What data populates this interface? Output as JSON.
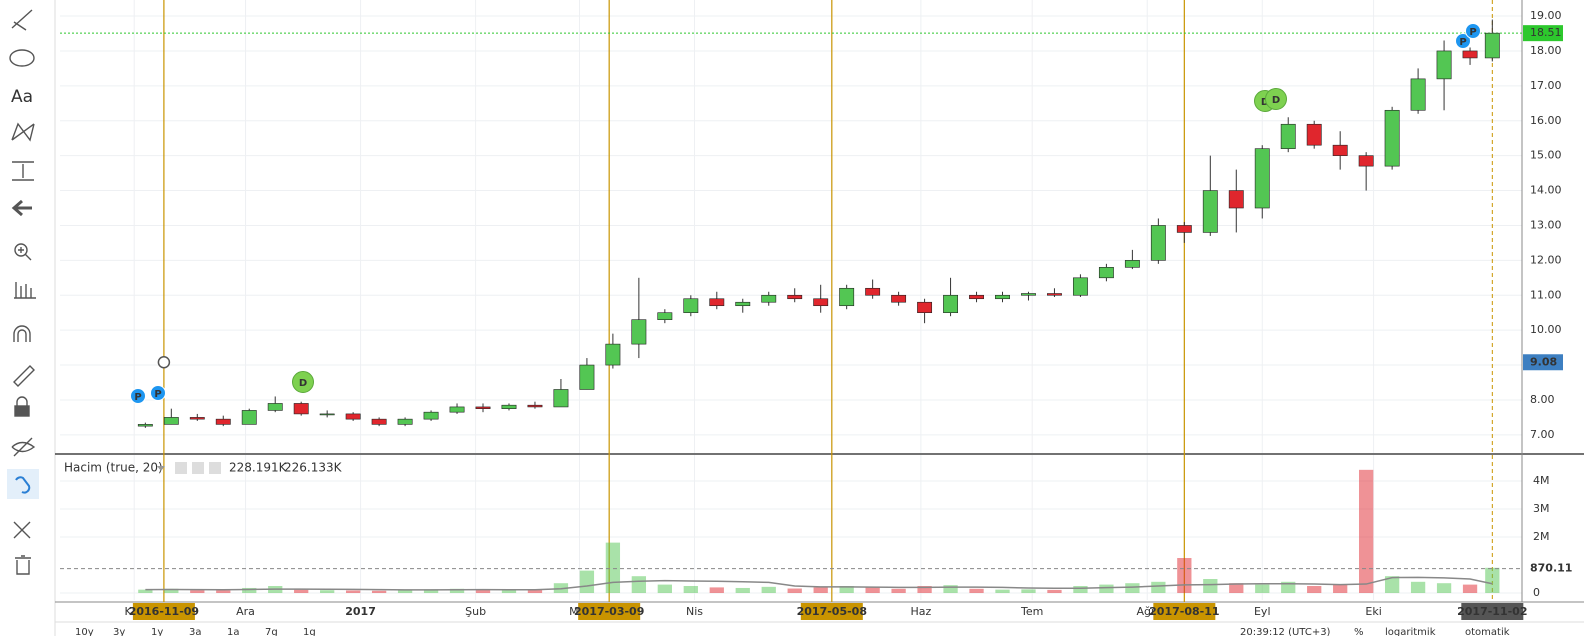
{
  "chart_data": {
    "type": "candlestick",
    "x": [
      "2016-11-04",
      "2016-11-11",
      "2016-11-18",
      "2016-11-25",
      "2016-12-02",
      "2016-12-09",
      "2016-12-16",
      "2016-12-23",
      "2016-12-30",
      "2017-01-06",
      "2017-01-13",
      "2017-01-20",
      "2017-01-27",
      "2017-02-03",
      "2017-02-10",
      "2017-02-17",
      "2017-02-24",
      "2017-03-03",
      "2017-03-10",
      "2017-03-17",
      "2017-03-24",
      "2017-03-31",
      "2017-04-07",
      "2017-04-14",
      "2017-04-21",
      "2017-04-28",
      "2017-05-05",
      "2017-05-12",
      "2017-05-19",
      "2017-05-26",
      "2017-06-02",
      "2017-06-09",
      "2017-06-16",
      "2017-06-23",
      "2017-06-30",
      "2017-07-07",
      "2017-07-14",
      "2017-07-21",
      "2017-07-28",
      "2017-08-04",
      "2017-08-11",
      "2017-08-18",
      "2017-08-25",
      "2017-09-01",
      "2017-09-08",
      "2017-09-15",
      "2017-09-22",
      "2017-09-29",
      "2017-10-06",
      "2017-10-13",
      "2017-10-20",
      "2017-10-27",
      "2017-11-02"
    ],
    "open": [
      7.25,
      7.3,
      7.5,
      7.45,
      7.3,
      7.7,
      7.9,
      7.6,
      7.6,
      7.45,
      7.3,
      7.45,
      7.65,
      7.8,
      7.75,
      7.85,
      7.8,
      8.3,
      9.0,
      9.6,
      10.3,
      10.5,
      10.9,
      10.7,
      10.8,
      11.0,
      10.9,
      10.7,
      11.2,
      11.0,
      10.8,
      10.5,
      11.0,
      10.9,
      11.0,
      11.05,
      11.0,
      11.5,
      11.8,
      12.0,
      13.0,
      12.8,
      14.0,
      13.5,
      15.2,
      15.9,
      15.3,
      15.0,
      14.7,
      16.3,
      17.2,
      18.0,
      17.8
    ],
    "high": [
      7.35,
      7.75,
      7.6,
      7.55,
      7.75,
      8.1,
      7.95,
      7.7,
      7.65,
      7.5,
      7.5,
      7.7,
      7.9,
      7.9,
      7.9,
      7.95,
      8.6,
      9.2,
      9.9,
      11.5,
      10.6,
      11.0,
      11.1,
      10.9,
      11.1,
      11.2,
      11.3,
      11.3,
      11.45,
      11.1,
      10.9,
      11.5,
      11.1,
      11.1,
      11.1,
      11.2,
      11.6,
      11.9,
      12.3,
      13.2,
      13.1,
      15.0,
      14.6,
      15.3,
      16.1,
      16.0,
      15.7,
      15.1,
      16.4,
      17.5,
      18.3,
      18.1,
      18.9
    ],
    "low": [
      7.2,
      7.3,
      7.4,
      7.25,
      7.3,
      7.65,
      7.55,
      7.5,
      7.4,
      7.25,
      7.25,
      7.4,
      7.6,
      7.65,
      7.7,
      7.75,
      7.8,
      8.3,
      8.9,
      9.2,
      10.2,
      10.4,
      10.6,
      10.5,
      10.7,
      10.8,
      10.5,
      10.6,
      10.9,
      10.7,
      10.2,
      10.4,
      10.8,
      10.8,
      10.85,
      10.95,
      10.95,
      11.4,
      11.75,
      11.9,
      12.5,
      12.7,
      12.8,
      13.2,
      15.1,
      15.2,
      14.6,
      14.0,
      14.6,
      16.2,
      16.3,
      17.6,
      17.7
    ],
    "close": [
      7.3,
      7.5,
      7.45,
      7.3,
      7.7,
      7.9,
      7.6,
      7.6,
      7.45,
      7.3,
      7.45,
      7.65,
      7.8,
      7.75,
      7.85,
      7.8,
      8.3,
      9.0,
      9.6,
      10.3,
      10.5,
      10.9,
      10.7,
      10.8,
      11.0,
      10.9,
      10.7,
      11.2,
      11.0,
      10.8,
      10.5,
      11.0,
      10.9,
      11.0,
      11.05,
      11.0,
      11.5,
      11.8,
      12.0,
      13.0,
      12.8,
      14.0,
      13.5,
      15.2,
      15.9,
      15.3,
      15.0,
      14.7,
      16.3,
      17.2,
      18.0,
      17.8,
      18.51
    ],
    "up_color": "#53c653",
    "down_color": "#e0262d",
    "xlim": [
      "2016-10-12",
      "2017-11-10"
    ],
    "xticks": [
      {
        "value": "2016-11-01",
        "label": "Kas"
      },
      {
        "value": "2016-12-01",
        "label": "Ara"
      },
      {
        "value": "2017-01-01",
        "label": "2017"
      },
      {
        "value": "2017-02-01",
        "label": "Şub"
      },
      {
        "value": "2017-03-01",
        "label": "Mar"
      },
      {
        "value": "2017-04-01",
        "label": "Nis"
      },
      {
        "value": "2017-06-01",
        "label": "Haz"
      },
      {
        "value": "2017-07-01",
        "label": "Tem"
      },
      {
        "value": "2017-08-01",
        "label": "Ağu"
      },
      {
        "value": "2017-09-01",
        "label": "Eyl"
      },
      {
        "value": "2017-10-01",
        "label": "Eki"
      }
    ],
    "ylim": [
      6.48,
      19.46
    ],
    "yticks": [
      {
        "value": 7,
        "label": "7.00"
      },
      {
        "value": 8,
        "label": "8.00"
      },
      {
        "value": 9,
        "label": "9.00"
      },
      {
        "value": 10,
        "label": "10.00"
      },
      {
        "value": 11,
        "label": "11.00"
      },
      {
        "value": 12,
        "label": "12.00"
      },
      {
        "value": 13,
        "label": "13.00"
      },
      {
        "value": 14,
        "label": "14.00"
      },
      {
        "value": 15,
        "label": "15.00"
      },
      {
        "value": 16,
        "label": "16.00"
      },
      {
        "value": 17,
        "label": "17.00"
      },
      {
        "value": 18,
        "label": "18.00"
      },
      {
        "value": 19,
        "label": "19.00"
      }
    ],
    "last_price": 18.51,
    "cursor_price": 9.08,
    "vlines": [
      "2016-11-09",
      "2017-03-09",
      "2017-05-08",
      "2017-08-11"
    ],
    "cursor_date": "2017-11-02",
    "markers": [
      "P",
      "P",
      "D",
      "D",
      "D",
      "P",
      "P"
    ],
    "grid": true,
    "volume": {
      "title": "Hacim (true, 20)",
      "legend_values": [
        "228.191K",
        "226.133K"
      ],
      "values": [
        120000,
        150000,
        100000,
        90000,
        180000,
        250000,
        120000,
        100000,
        90000,
        80000,
        110000,
        130000,
        150000,
        120000,
        100000,
        110000,
        350000,
        800000,
        1800000,
        600000,
        300000,
        250000,
        200000,
        180000,
        220000,
        160000,
        200000,
        250000,
        200000,
        150000,
        250000,
        280000,
        150000,
        120000,
        130000,
        110000,
        250000,
        300000,
        350000,
        400000,
        1250000,
        500000,
        350000,
        300000,
        400000,
        250000,
        300000,
        4400000,
        600000,
        400000,
        350000,
        300000,
        900000
      ],
      "ma_color": "#888888",
      "ma": [
        120000,
        125000,
        120000,
        115000,
        125000,
        140000,
        140000,
        135000,
        130000,
        120000,
        110000,
        110000,
        115000,
        120000,
        115000,
        115000,
        150000,
        250000,
        380000,
        420000,
        440000,
        430000,
        420000,
        400000,
        380000,
        250000,
        220000,
        220000,
        210000,
        200000,
        200000,
        210000,
        210000,
        200000,
        180000,
        170000,
        170000,
        190000,
        210000,
        250000,
        290000,
        300000,
        320000,
        330000,
        330000,
        320000,
        300000,
        320000,
        550000,
        560000,
        540000,
        500000,
        330000
      ],
      "ylim": [
        -250000,
        4930000
      ],
      "yticks": [
        0,
        {
          "value": 2000000,
          "label": "2M"
        },
        {
          "value": 3000000,
          "label": "3M"
        },
        {
          "value": 4000000,
          "label": "4M"
        }
      ],
      "level": {
        "value": 870110,
        "label": "870.11"
      }
    }
  },
  "toolbar": {
    "text_tool": "Aa"
  },
  "bottom_bar": {
    "ranges": [
      "10y",
      "3y",
      "1y",
      "3a",
      "1a",
      "7g",
      "1g"
    ],
    "clock": "20:39:12 (UTC+3)",
    "percent": "%",
    "log": "logaritmik",
    "auto": "otomatik"
  }
}
